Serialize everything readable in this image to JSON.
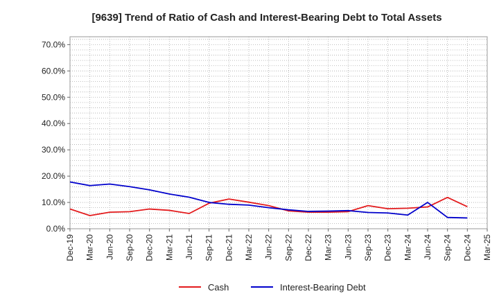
{
  "chart_data": {
    "type": "line",
    "title": "[9639]  Trend of Ratio of Cash and Interest-Bearing Debt to Total Assets",
    "xlabel": "",
    "ylabel": "",
    "x_ticks": [
      "Dec-19",
      "Mar-20",
      "Jun-20",
      "Sep-20",
      "Dec-20",
      "Mar-21",
      "Jun-21",
      "Sep-21",
      "Dec-21",
      "Mar-22",
      "Jun-22",
      "Sep-22",
      "Dec-22",
      "Mar-23",
      "Jun-23",
      "Sep-23",
      "Dec-23",
      "Mar-24",
      "Jun-24",
      "Sep-24",
      "Dec-24",
      "Mar-25"
    ],
    "y_ticks": [
      {
        "value": 0,
        "label": "0.0%"
      },
      {
        "value": 10,
        "label": "10.0%"
      },
      {
        "value": 20,
        "label": "20.0%"
      },
      {
        "value": 30,
        "label": "30.0%"
      },
      {
        "value": 40,
        "label": "40.0%"
      },
      {
        "value": 50,
        "label": "50.0%"
      },
      {
        "value": 60,
        "label": "60.0%"
      },
      {
        "value": 70,
        "label": "70.0%"
      }
    ],
    "ylim": [
      0,
      73
    ],
    "grid": true,
    "legend_position": "bottom-center",
    "series": [
      {
        "name": "Cash",
        "color": "#e31a1c",
        "x": [
          "Dec-19",
          "Mar-20",
          "Jun-20",
          "Sep-20",
          "Dec-20",
          "Mar-21",
          "Jun-21",
          "Sep-21",
          "Dec-21",
          "Mar-22",
          "Jun-22",
          "Sep-22",
          "Dec-22",
          "Mar-23",
          "Jun-23",
          "Sep-23",
          "Dec-23",
          "Mar-24",
          "Jun-24",
          "Sep-24",
          "Dec-24"
        ],
        "values": [
          7.5,
          5.0,
          6.3,
          6.5,
          7.5,
          7.0,
          5.8,
          9.7,
          11.3,
          10.1,
          8.8,
          6.8,
          6.3,
          6.3,
          6.5,
          8.8,
          7.6,
          7.8,
          8.3,
          11.9,
          8.4
        ]
      },
      {
        "name": "Interest-Bearing Debt",
        "color": "#0000cc",
        "x": [
          "Dec-19",
          "Mar-20",
          "Jun-20",
          "Sep-20",
          "Dec-20",
          "Mar-21",
          "Jun-21",
          "Sep-21",
          "Dec-21",
          "Mar-22",
          "Jun-22",
          "Sep-22",
          "Dec-22",
          "Mar-23",
          "Jun-23",
          "Sep-23",
          "Dec-23",
          "Mar-24",
          "Jun-24",
          "Sep-24",
          "Dec-24"
        ],
        "values": [
          17.8,
          16.4,
          17.0,
          16.0,
          14.8,
          13.2,
          12.0,
          10.0,
          9.3,
          9.0,
          8.0,
          7.2,
          6.6,
          6.7,
          6.9,
          6.2,
          6.0,
          5.2,
          10.0,
          4.3,
          4.1
        ]
      }
    ]
  }
}
